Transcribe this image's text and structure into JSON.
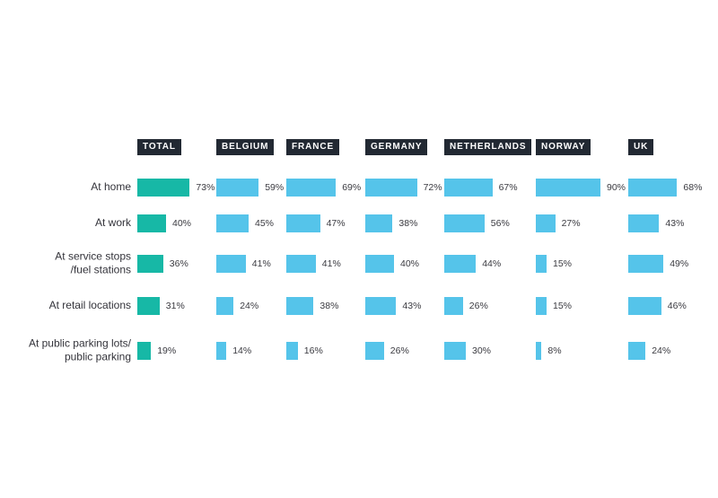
{
  "chart_data": {
    "type": "bar",
    "orientation": "horizontal",
    "title": "",
    "value_suffix": "%",
    "xlim": [
      0,
      100
    ],
    "grid": false,
    "legend_position": "none",
    "categories": [
      "At home",
      "At work",
      "At service stops\n/fuel stations",
      "At retail locations",
      "At public parking lots/\npublic parking"
    ],
    "series": [
      {
        "name": "TOTAL",
        "color": "#17b8a6",
        "values": [
          73,
          40,
          36,
          31,
          19
        ]
      },
      {
        "name": "BELGIUM",
        "color": "#55c4ea",
        "values": [
          59,
          45,
          41,
          24,
          14
        ]
      },
      {
        "name": "FRANCE",
        "color": "#55c4ea",
        "values": [
          69,
          47,
          41,
          38,
          16
        ]
      },
      {
        "name": "GERMANY",
        "color": "#55c4ea",
        "values": [
          72,
          38,
          40,
          43,
          26
        ]
      },
      {
        "name": "NETHERLANDS",
        "color": "#55c4ea",
        "values": [
          67,
          56,
          44,
          26,
          30
        ]
      },
      {
        "name": "NORWAY",
        "color": "#55c4ea",
        "values": [
          90,
          27,
          15,
          15,
          8
        ]
      },
      {
        "name": "UK",
        "color": "#55c4ea",
        "values": [
          68,
          43,
          49,
          46,
          24
        ]
      }
    ]
  },
  "colors": {
    "header_bg": "#222933",
    "header_text": "#ffffff",
    "label_text": "#33333a",
    "background": "#ffffff"
  }
}
